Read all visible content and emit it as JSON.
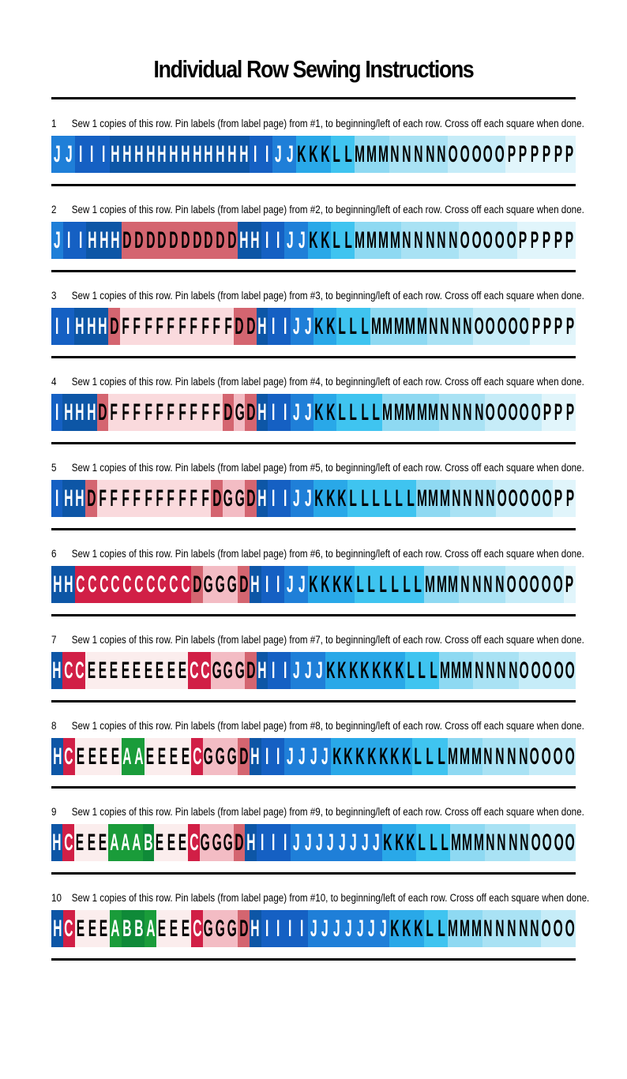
{
  "title": "Individual Row Sewing Instructions",
  "colors": {
    "A": "#1a9c3a",
    "B": "#0f8a38",
    "C": "#d11f46",
    "D": "#d46570",
    "E": "#fbeded",
    "F": "#fadadd",
    "G": "#f3bcc4",
    "H": "#0d56a6",
    "I": "#1560c3",
    "J": "#1f7fd8",
    "K": "#29a8e8",
    "L": "#3fc4f0",
    "M": "#8ed9f2",
    "N": "#a9e2f4",
    "O": "#c6ecf8",
    "P": "#e1f5fb"
  },
  "rows": [
    {
      "number": "1",
      "instruction": "Sew 1 copies of this row.  Pin labels (from label page) from #1, to beginning/left of each row. Cross off each square when done.",
      "squares": [
        "J",
        "J",
        "I",
        "I",
        "I",
        "H",
        "H",
        "H",
        "H",
        "H",
        "H",
        "H",
        "H",
        "H",
        "H",
        "H",
        "H",
        "I",
        "I",
        "J",
        "J",
        "K",
        "K",
        "K",
        "L",
        "L",
        "M",
        "M",
        "M",
        "N",
        "N",
        "N",
        "N",
        "N",
        "O",
        "O",
        "O",
        "O",
        "O",
        "P",
        "P",
        "P",
        "P",
        "P",
        "P"
      ]
    },
    {
      "number": "2",
      "instruction": "Sew 1 copies of this row.  Pin labels (from label page) from #2, to beginning/left of each row. Cross off each square when done.",
      "squares": [
        "J",
        "I",
        "I",
        "H",
        "H",
        "H",
        "D",
        "D",
        "D",
        "D",
        "D",
        "D",
        "D",
        "D",
        "D",
        "D",
        "H",
        "H",
        "I",
        "I",
        "J",
        "J",
        "K",
        "K",
        "L",
        "L",
        "M",
        "M",
        "M",
        "M",
        "N",
        "N",
        "N",
        "N",
        "N",
        "O",
        "O",
        "O",
        "O",
        "O",
        "P",
        "P",
        "P",
        "P",
        "P"
      ]
    },
    {
      "number": "3",
      "instruction": "Sew 1 copies of this row.  Pin labels (from label page) from #3, to beginning/left of each row. Cross off each square when done.",
      "squares": [
        "I",
        "I",
        "H",
        "H",
        "H",
        "D",
        "F",
        "F",
        "F",
        "F",
        "F",
        "F",
        "F",
        "F",
        "F",
        "F",
        "D",
        "D",
        "H",
        "I",
        "I",
        "J",
        "J",
        "K",
        "K",
        "L",
        "L",
        "L",
        "M",
        "M",
        "M",
        "M",
        "M",
        "N",
        "N",
        "N",
        "N",
        "O",
        "O",
        "O",
        "O",
        "O",
        "P",
        "P",
        "P",
        "P"
      ]
    },
    {
      "number": "4",
      "instruction": "Sew 1 copies of this row.  Pin labels (from label page) from #4, to beginning/left of each row. Cross off each square when done.",
      "squares": [
        "I",
        "H",
        "H",
        "H",
        "D",
        "F",
        "F",
        "F",
        "F",
        "F",
        "F",
        "F",
        "F",
        "F",
        "F",
        "D",
        "G",
        "D",
        "H",
        "I",
        "I",
        "J",
        "J",
        "K",
        "K",
        "L",
        "L",
        "L",
        "L",
        "M",
        "M",
        "M",
        "M",
        "M",
        "N",
        "N",
        "N",
        "N",
        "O",
        "O",
        "O",
        "O",
        "O",
        "P",
        "P",
        "P"
      ]
    },
    {
      "number": "5",
      "instruction": "Sew 1 copies of this row.  Pin labels (from label page) from #5, to beginning/left of each row. Cross off each square when done.",
      "squares": [
        "I",
        "H",
        "H",
        "D",
        "F",
        "F",
        "F",
        "F",
        "F",
        "F",
        "F",
        "F",
        "F",
        "F",
        "D",
        "G",
        "G",
        "D",
        "H",
        "I",
        "I",
        "J",
        "J",
        "K",
        "K",
        "K",
        "L",
        "L",
        "L",
        "L",
        "L",
        "L",
        "M",
        "M",
        "M",
        "N",
        "N",
        "N",
        "N",
        "O",
        "O",
        "O",
        "O",
        "O",
        "P",
        "P"
      ]
    },
    {
      "number": "6",
      "instruction": "Sew 1 copies of this row.  Pin labels (from label page) from #6, to beginning/left of each row. Cross off each square when done.",
      "squares": [
        "H",
        "H",
        "C",
        "C",
        "C",
        "C",
        "C",
        "C",
        "C",
        "C",
        "C",
        "C",
        "D",
        "G",
        "G",
        "G",
        "D",
        "H",
        "I",
        "I",
        "J",
        "J",
        "K",
        "K",
        "K",
        "K",
        "L",
        "L",
        "L",
        "L",
        "L",
        "L",
        "M",
        "M",
        "M",
        "N",
        "N",
        "N",
        "N",
        "O",
        "O",
        "O",
        "O",
        "O",
        "P"
      ]
    },
    {
      "number": "7",
      "instruction": "Sew 1 copies of this row.  Pin labels (from label page) from #7, to beginning/left of each row. Cross off each square when done.",
      "squares": [
        "H",
        "C",
        "C",
        "E",
        "E",
        "E",
        "E",
        "E",
        "E",
        "E",
        "E",
        "E",
        "C",
        "C",
        "G",
        "G",
        "G",
        "D",
        "H",
        "I",
        "I",
        "J",
        "J",
        "J",
        "K",
        "K",
        "K",
        "K",
        "K",
        "K",
        "K",
        "L",
        "L",
        "L",
        "M",
        "M",
        "M",
        "N",
        "N",
        "N",
        "N",
        "O",
        "O",
        "O",
        "O",
        "O"
      ]
    },
    {
      "number": "8",
      "instruction": "Sew 1 copies of this row.  Pin labels (from label page) from #8, to beginning/left of each row. Cross off each square when done.",
      "squares": [
        "H",
        "C",
        "E",
        "E",
        "E",
        "E",
        "A",
        "A",
        "E",
        "E",
        "E",
        "E",
        "C",
        "G",
        "G",
        "G",
        "D",
        "H",
        "I",
        "I",
        "J",
        "J",
        "J",
        "J",
        "K",
        "K",
        "K",
        "K",
        "K",
        "K",
        "K",
        "L",
        "L",
        "L",
        "M",
        "M",
        "M",
        "N",
        "N",
        "N",
        "N",
        "O",
        "O",
        "O",
        "O"
      ]
    },
    {
      "number": "9",
      "instruction": "Sew 1 copies of this row.  Pin labels (from label page) from #9, to beginning/left of each row. Cross off each square when done.",
      "squares": [
        "H",
        "C",
        "E",
        "E",
        "E",
        "A",
        "A",
        "A",
        "B",
        "E",
        "E",
        "E",
        "C",
        "G",
        "G",
        "G",
        "D",
        "H",
        "I",
        "I",
        "I",
        "J",
        "J",
        "J",
        "J",
        "J",
        "J",
        "J",
        "J",
        "K",
        "K",
        "K",
        "L",
        "L",
        "L",
        "M",
        "M",
        "M",
        "N",
        "N",
        "N",
        "N",
        "O",
        "O",
        "O",
        "O"
      ]
    },
    {
      "number": "10",
      "instruction": "Sew 1 copies of this row.  Pin labels (from label page) from #10, to beginning/left of each row. Cross off each square when done.",
      "squares": [
        "H",
        "C",
        "E",
        "E",
        "E",
        "A",
        "B",
        "B",
        "A",
        "E",
        "E",
        "E",
        "C",
        "G",
        "G",
        "G",
        "D",
        "H",
        "I",
        "I",
        "I",
        "I",
        "J",
        "J",
        "J",
        "J",
        "J",
        "J",
        "J",
        "K",
        "K",
        "K",
        "L",
        "L",
        "M",
        "M",
        "M",
        "N",
        "N",
        "N",
        "N",
        "N",
        "O",
        "O",
        "O"
      ]
    }
  ]
}
